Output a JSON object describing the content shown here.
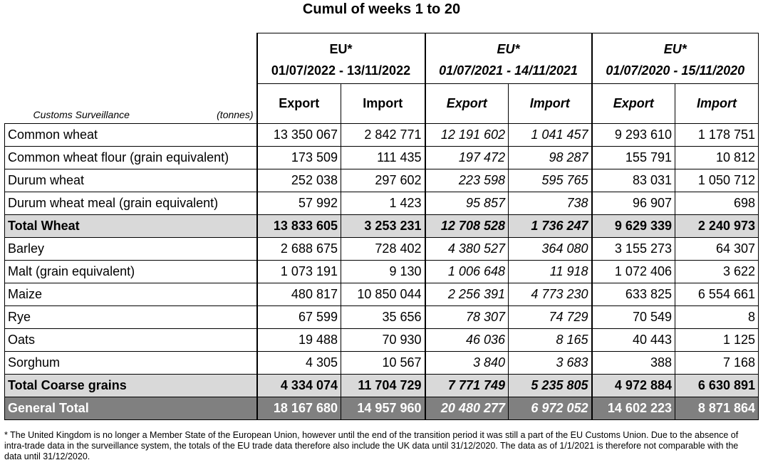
{
  "title": "Cumul of weeks 1 to 20",
  "header": {
    "corner_label": "Customs Surveillance",
    "unit_label": "(tonnes)",
    "groups": [
      {
        "name": "EU*",
        "period": "01/07/2022 - 13/11/2022",
        "export": "Export",
        "import": "Import"
      },
      {
        "name": "EU*",
        "period": "01/07/2021 - 14/11/2021",
        "export": "Export",
        "import": "Import"
      },
      {
        "name": "EU*",
        "period": "01/07/2020 - 15/11/2020",
        "export": "Export",
        "import": "Import"
      }
    ]
  },
  "rows": [
    {
      "label": "Common wheat",
      "v": [
        "13 350 067",
        "2 842 771",
        "12 191 602",
        "1 041 457",
        "9 293 610",
        "1 178 751"
      ]
    },
    {
      "label": "Common wheat flour (grain equivalent)",
      "v": [
        "173 509",
        "111 435",
        "197 472",
        "98 287",
        "155 791",
        "10 812"
      ]
    },
    {
      "label": "Durum wheat",
      "v": [
        "252 038",
        "297 602",
        "223 598",
        "595 765",
        "83 031",
        "1 050 712"
      ]
    },
    {
      "label": "Durum wheat meal (grain equivalent)",
      "v": [
        "57 992",
        "1 423",
        "95 857",
        "738",
        "96 907",
        "698"
      ]
    },
    {
      "label": "Total Wheat",
      "v": [
        "13 833 605",
        "3 253 231",
        "12 708 528",
        "1 736 247",
        "9 629 339",
        "2 240 973"
      ]
    },
    {
      "label": "Barley",
      "v": [
        "2 688 675",
        "728 402",
        "4 380 527",
        "364 080",
        "3 155 273",
        "64 307"
      ]
    },
    {
      "label": "Malt (grain equivalent)",
      "v": [
        "1 073 191",
        "9 130",
        "1 006 648",
        "11 918",
        "1 072 406",
        "3 622"
      ]
    },
    {
      "label": "Maize",
      "v": [
        "480 817",
        "10 850 044",
        "2 256 391",
        "4 773 230",
        "633 825",
        "6 554 661"
      ]
    },
    {
      "label": "Rye",
      "v": [
        "67 599",
        "35 656",
        "78 307",
        "74 729",
        "70 549",
        "8"
      ]
    },
    {
      "label": "Oats",
      "v": [
        "19 488",
        "70 930",
        "46 036",
        "8 165",
        "40 443",
        "1 125"
      ]
    },
    {
      "label": "Sorghum",
      "v": [
        "4 305",
        "10 567",
        "3 840",
        "3 683",
        "388",
        "7 168"
      ]
    },
    {
      "label": "Total Coarse grains",
      "v": [
        "4 334 074",
        "11 704 729",
        "7 771 749",
        "5 235 805",
        "4 972 884",
        "6 630 891"
      ]
    },
    {
      "label": "General Total",
      "v": [
        "18 167 680",
        "14 957 960",
        "20 480 277",
        "6 972 052",
        "14 602 223",
        "8 871 864"
      ]
    }
  ],
  "footnote": "* The United Kingdom is no longer a Member State of the European Union, however until the end of the transition period it was still a part of the EU Customs Union. Due to the absence of intra-trade data in the surveillance system, the totals of the EU trade data  therefore also include the UK data until 31/12/2020. The data as of 1/1/2021 is therefore not comparable with the data until 31/12/2020."
}
